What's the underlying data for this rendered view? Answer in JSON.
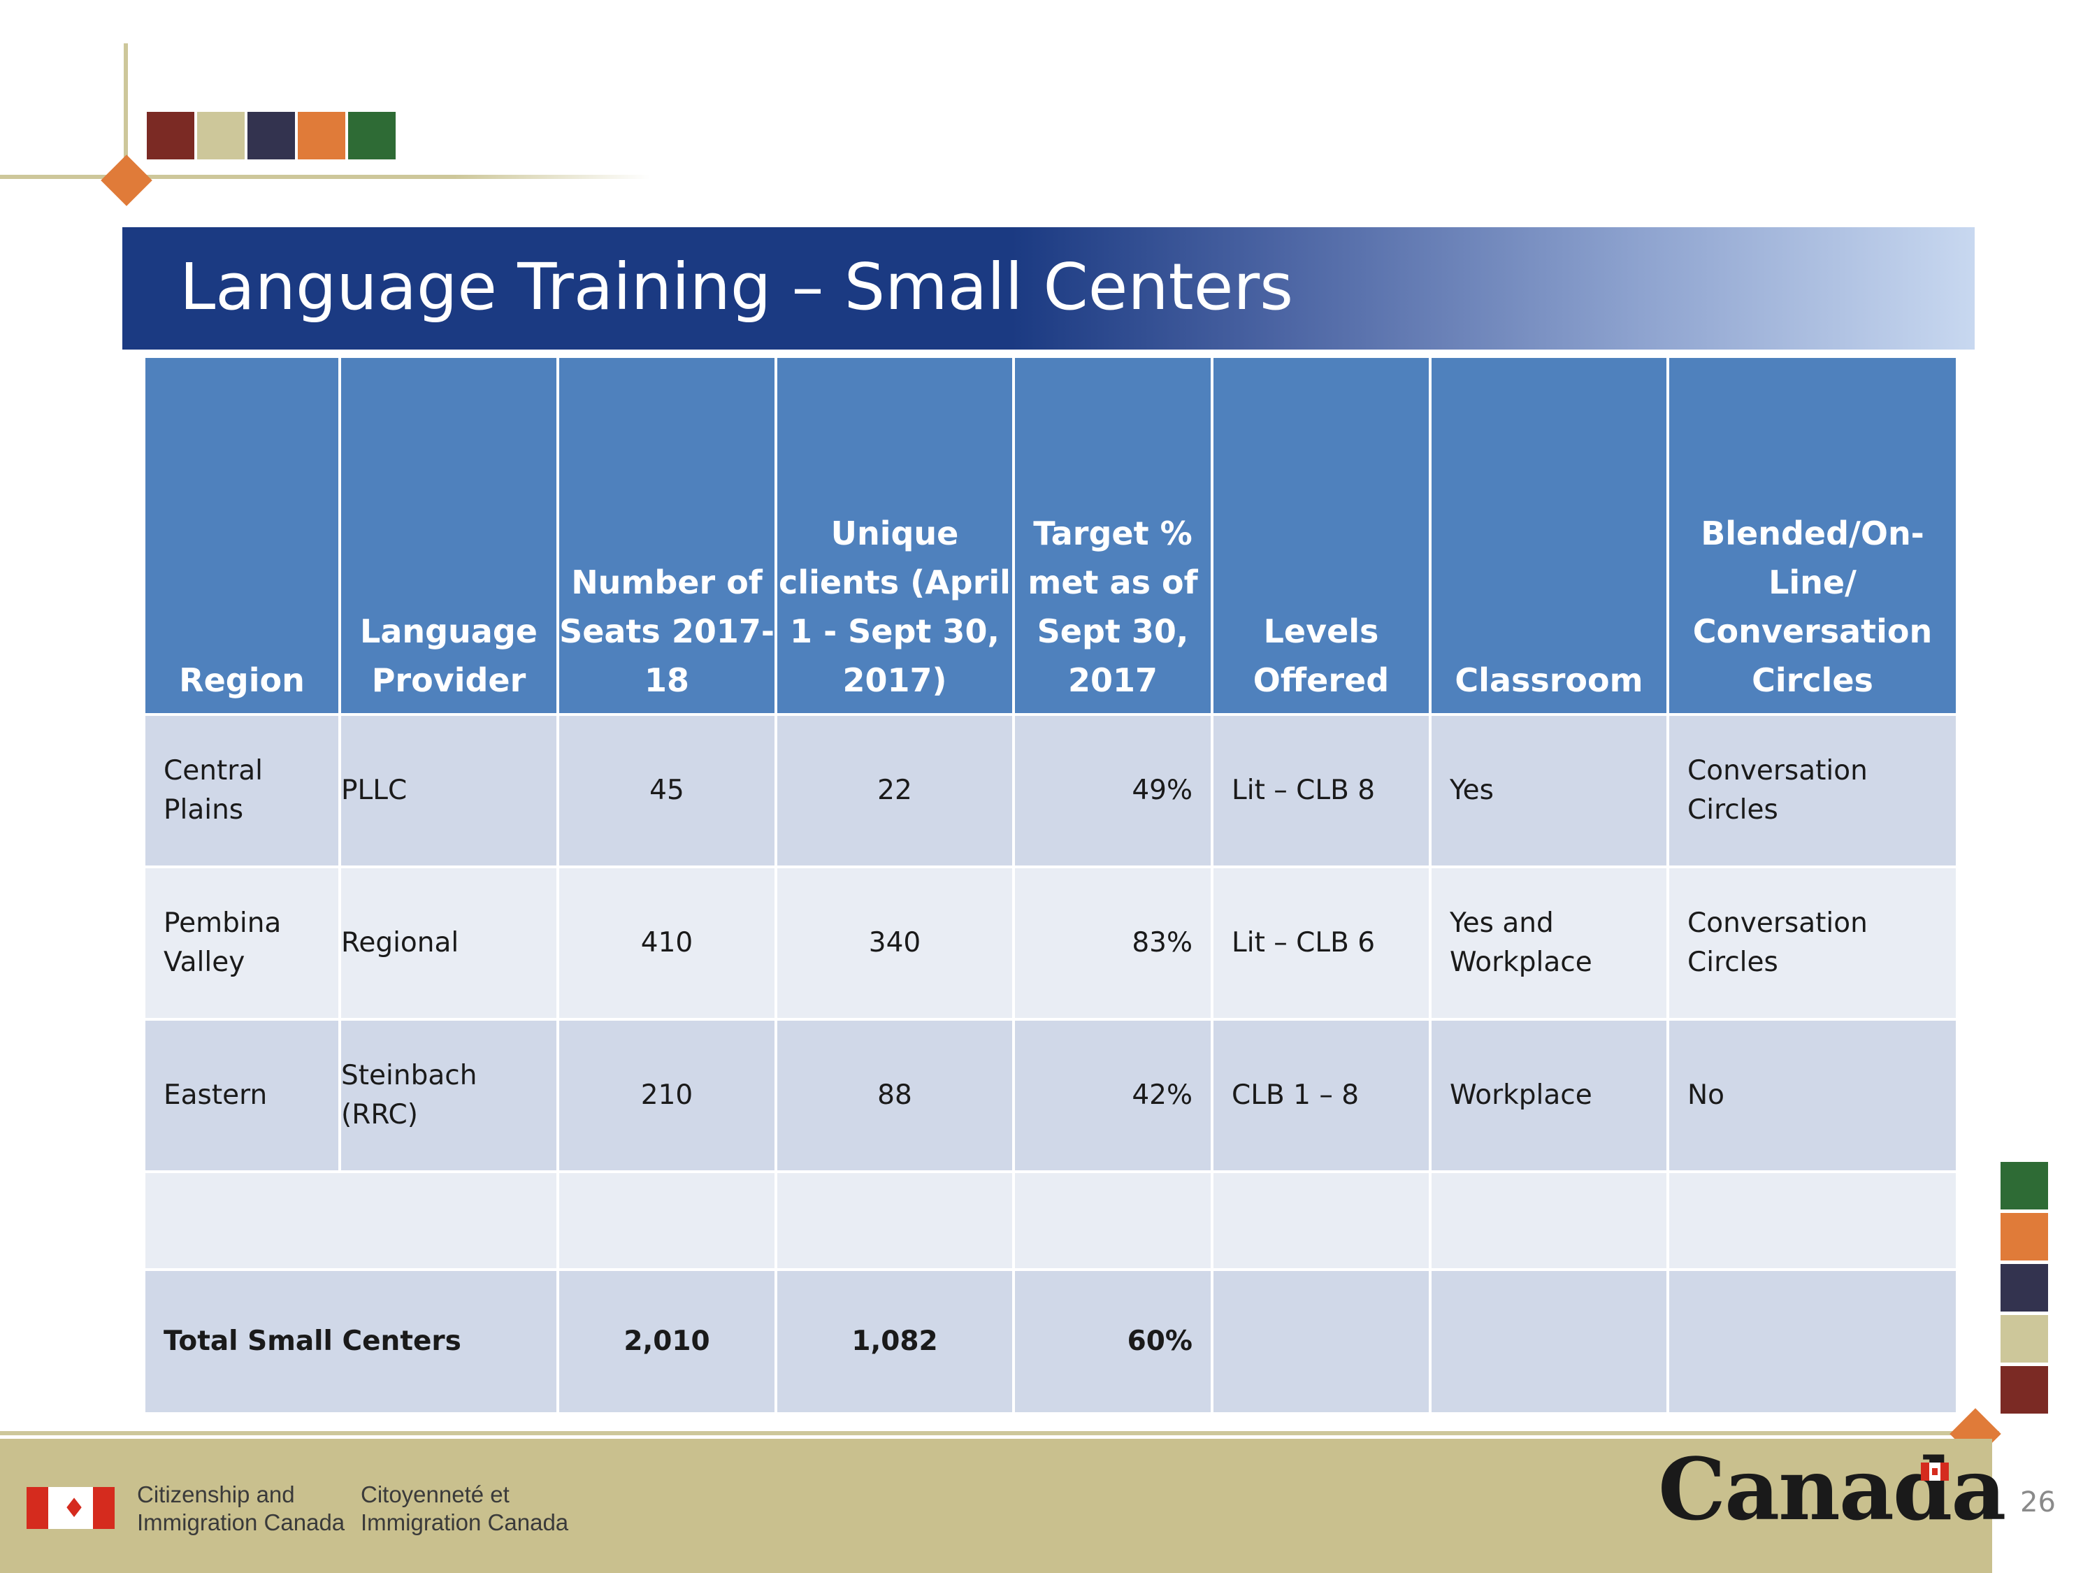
{
  "title": "Language Training – Small Centers",
  "colors": {
    "title_band": "#1b3a82",
    "header_fill": "#4f81bd",
    "row_dark": "#d0d8e8",
    "row_light": "#e9edf4",
    "footer": "#c9c08e",
    "accent_orange": "#e07b39",
    "swatches": [
      "#7b2a24",
      "#cdc79a",
      "#33334f",
      "#e07b39",
      "#2e6b35"
    ]
  },
  "table": {
    "headers": [
      "Region",
      "Language Provider",
      "Number of Seats 2017-18",
      "Unique clients (April 1 - Sept 30, 2017)",
      "Target % met as of Sept 30, 2017",
      "Levels Offered",
      "Classroom",
      "Blended/On-Line/ Conversation Circles"
    ],
    "rows": [
      {
        "region": "Central Plains",
        "provider": "PLLC",
        "seats": "45",
        "clients": "22",
        "target": "49%",
        "levels": "Lit – CLB 8",
        "classroom": "Yes",
        "blended": "Conversation Circles"
      },
      {
        "region": "Pembina Valley",
        "provider": "Regional",
        "seats": "410",
        "clients": "340",
        "target": "83%",
        "levels": "Lit – CLB 6",
        "classroom": "Yes and Workplace",
        "blended": "Conversation Circles"
      },
      {
        "region": "Eastern",
        "provider": "Steinbach (RRC)",
        "seats": "210",
        "clients": "88",
        "target": "42%",
        "levels": "CLB 1 – 8",
        "classroom": "Workplace",
        "blended": "No"
      }
    ],
    "total": {
      "label": "Total Small Centers",
      "seats": "2,010",
      "clients": "1,082",
      "target": "60%"
    }
  },
  "footer": {
    "agency_en_line1": "Citizenship and",
    "agency_en_line2": "Immigration Canada",
    "agency_fr_line1": "Citoyenneté et",
    "agency_fr_line2": "Immigration Canada",
    "wordmark": "Canada",
    "page_number": "26"
  },
  "icons": [
    "canada-flag-icon",
    "canada-wordmark-flag-icon"
  ]
}
